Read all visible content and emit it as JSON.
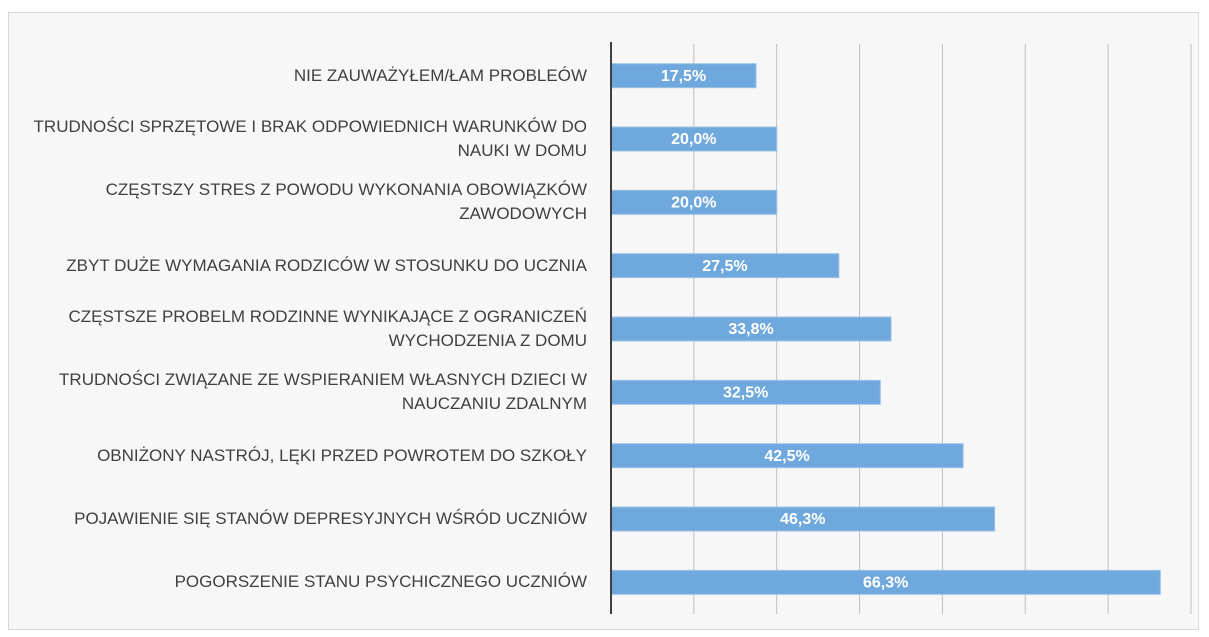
{
  "chart_data": {
    "type": "bar",
    "orientation": "horizontal",
    "categories": [
      "NIE ZAUWAŻYŁEM/ŁAM PROBLEÓW",
      "TRUDNOŚCI SPRZĘTOWE I BRAK ODPOWIEDNICH WARUNKÓW DO NAUKI W DOMU",
      "CZĘSTSZY STRES Z POWODU WYKONANIA OBOWIĄZKÓW ZAWODOWYCH",
      "ZBYT DUŻE WYMAGANIA RODZICÓW W STOSUNKU DO UCZNIA",
      "CZĘSTSZE PROBELM RODZINNE WYNIKAJĄCE Z OGRANICZEŃ WYCHODZENIA Z DOMU",
      "TRUDNOŚCI ZWIĄZANE ZE WSPIERANIEM WŁASNYCH DZIECI W NAUCZANIU ZDALNYM",
      "OBNIŻONY NASTRÓJ, LĘKI PRZED POWROTEM DO SZKOŁY",
      "POJAWIENIE SIĘ STANÓW DEPRESYJNYCH WŚRÓD UCZNIÓW",
      "POGORSZENIE STANU PSYCHICZNEGO UCZNIÓW"
    ],
    "values": [
      17.5,
      20.0,
      20.0,
      27.5,
      33.8,
      32.5,
      42.5,
      46.3,
      66.3
    ],
    "value_labels": [
      "17,5%",
      "20,0%",
      "20,0%",
      "27,5%",
      "33,8%",
      "32,5%",
      "42,5%",
      "46,3%",
      "66,3%"
    ],
    "color": "#6fa8dc",
    "xlim": [
      0,
      70
    ],
    "xticks": [
      0,
      10,
      20,
      30,
      40,
      50,
      60,
      70
    ],
    "grid": true
  }
}
